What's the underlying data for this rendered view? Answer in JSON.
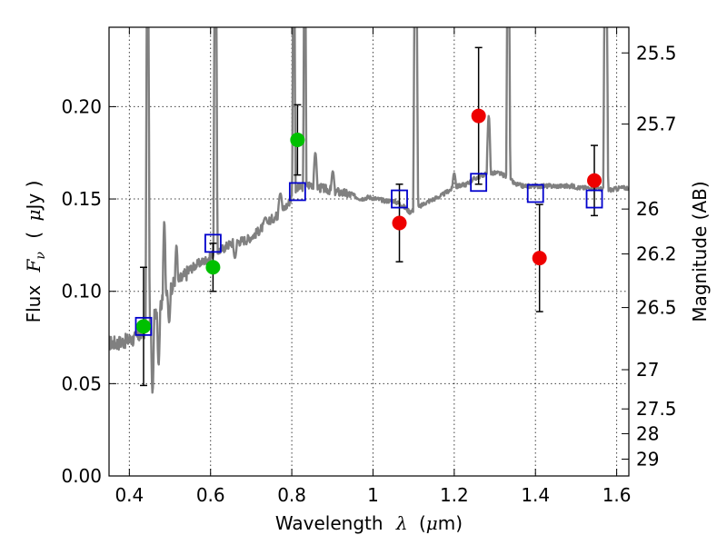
{
  "chart_data": {
    "type": "scatter",
    "title": "",
    "xlabel": {
      "prefix": "Wavelength",
      "symbol": "λ",
      "unit_open": "(",
      "unit_mu": "μ",
      "unit_rest": "m)"
    },
    "ylabel": {
      "prefix": "Flux",
      "symbol_main": "F",
      "symbol_sub": "ν",
      "unit_open": "(",
      "unit_mu": "μ",
      "unit_rest": "Jy )"
    },
    "y2label": "Magnitude (AB)",
    "xlim": [
      0.35,
      1.63
    ],
    "ylim": [
      0.0,
      0.243
    ],
    "grid": true,
    "x_ticks": [
      {
        "value": 0.4,
        "label": "0.4"
      },
      {
        "value": 0.6,
        "label": "0.6"
      },
      {
        "value": 0.8,
        "label": "0.8"
      },
      {
        "value": 1.0,
        "label": "1"
      },
      {
        "value": 1.2,
        "label": "1.2"
      },
      {
        "value": 1.4,
        "label": "1.4"
      },
      {
        "value": 1.6,
        "label": "1.6"
      }
    ],
    "y_ticks": [
      {
        "value": 0.0,
        "label": "0.00"
      },
      {
        "value": 0.05,
        "label": "0.05"
      },
      {
        "value": 0.1,
        "label": "0.10"
      },
      {
        "value": 0.15,
        "label": "0.15"
      },
      {
        "value": 0.2,
        "label": "0.20"
      }
    ],
    "y2_ticks": [
      {
        "value": 25.5,
        "label": "25.5"
      },
      {
        "value": 25.7,
        "label": "25.7"
      },
      {
        "value": 26.0,
        "label": "26"
      },
      {
        "value": 26.2,
        "label": "26.2"
      },
      {
        "value": 26.5,
        "label": "26.5"
      },
      {
        "value": 27.0,
        "label": "27"
      },
      {
        "value": 27.5,
        "label": "27.5"
      },
      {
        "value": 28.0,
        "label": "28"
      },
      {
        "value": 29.0,
        "label": "29"
      }
    ],
    "observed_green": {
      "color": "#00c000",
      "points": [
        {
          "x": 0.435,
          "y": 0.081,
          "err": 0.032
        },
        {
          "x": 0.606,
          "y": 0.113,
          "err": 0.013
        },
        {
          "x": 0.814,
          "y": 0.182,
          "err": 0.019
        }
      ]
    },
    "observed_red": {
      "color": "#ee0000",
      "points": [
        {
          "x": 1.065,
          "y": 0.137,
          "err": 0.021
        },
        {
          "x": 1.26,
          "y": 0.195,
          "err": 0.037
        },
        {
          "x": 1.41,
          "y": 0.118,
          "err": 0.029
        },
        {
          "x": 1.545,
          "y": 0.16,
          "err": 0.019
        }
      ]
    },
    "model_squares": {
      "color": "#0000cc",
      "points": [
        {
          "x": 0.435,
          "y": 0.081
        },
        {
          "x": 0.606,
          "y": 0.126
        },
        {
          "x": 0.814,
          "y": 0.154
        },
        {
          "x": 1.065,
          "y": 0.15
        },
        {
          "x": 1.26,
          "y": 0.159
        },
        {
          "x": 1.4,
          "y": 0.153
        },
        {
          "x": 1.545,
          "y": 0.15
        }
      ]
    },
    "model_spectrum": {
      "color": "#808080",
      "continuum": [
        [
          0.35,
          0.072
        ],
        [
          0.37,
          0.072
        ],
        [
          0.39,
          0.073
        ],
        [
          0.41,
          0.074
        ],
        [
          0.43,
          0.077
        ],
        [
          0.45,
          0.081
        ],
        [
          0.47,
          0.09
        ],
        [
          0.49,
          0.098
        ],
        [
          0.51,
          0.104
        ],
        [
          0.53,
          0.107
        ],
        [
          0.55,
          0.112
        ],
        [
          0.57,
          0.115
        ],
        [
          0.59,
          0.117
        ],
        [
          0.61,
          0.121
        ],
        [
          0.63,
          0.123
        ],
        [
          0.65,
          0.126
        ],
        [
          0.67,
          0.127
        ],
        [
          0.69,
          0.128
        ],
        [
          0.71,
          0.131
        ],
        [
          0.73,
          0.135
        ],
        [
          0.75,
          0.139
        ],
        [
          0.77,
          0.142
        ],
        [
          0.79,
          0.147
        ],
        [
          0.81,
          0.155
        ],
        [
          0.83,
          0.157
        ],
        [
          0.85,
          0.158
        ],
        [
          0.87,
          0.156
        ],
        [
          0.89,
          0.155
        ],
        [
          0.91,
          0.154
        ],
        [
          0.93,
          0.153
        ],
        [
          0.95,
          0.152
        ],
        [
          0.97,
          0.15
        ],
        [
          0.99,
          0.151
        ],
        [
          1.01,
          0.15
        ],
        [
          1.03,
          0.149
        ],
        [
          1.05,
          0.149
        ],
        [
          1.07,
          0.147
        ],
        [
          1.09,
          0.143
        ],
        [
          1.11,
          0.145
        ],
        [
          1.13,
          0.148
        ],
        [
          1.15,
          0.15
        ],
        [
          1.17,
          0.152
        ],
        [
          1.19,
          0.155
        ],
        [
          1.21,
          0.157
        ],
        [
          1.23,
          0.158
        ],
        [
          1.25,
          0.161
        ],
        [
          1.27,
          0.163
        ],
        [
          1.29,
          0.164
        ],
        [
          1.31,
          0.164
        ],
        [
          1.33,
          0.162
        ],
        [
          1.35,
          0.158
        ],
        [
          1.37,
          0.157
        ],
        [
          1.39,
          0.157
        ],
        [
          1.41,
          0.157
        ],
        [
          1.43,
          0.157
        ],
        [
          1.45,
          0.157
        ],
        [
          1.47,
          0.157
        ],
        [
          1.49,
          0.157
        ],
        [
          1.51,
          0.156
        ],
        [
          1.53,
          0.156
        ],
        [
          1.55,
          0.156
        ],
        [
          1.57,
          0.155
        ],
        [
          1.59,
          0.155
        ],
        [
          1.61,
          0.156
        ],
        [
          1.63,
          0.156
        ]
      ],
      "features": [
        {
          "x": 0.445,
          "y": 0.3,
          "w": 0.005
        },
        {
          "x": 0.457,
          "y": 0.045,
          "w": 0.004
        },
        {
          "x": 0.472,
          "y": 0.06,
          "w": 0.004
        },
        {
          "x": 0.486,
          "y": 0.138,
          "w": 0.004
        },
        {
          "x": 0.498,
          "y": 0.083,
          "w": 0.004
        },
        {
          "x": 0.516,
          "y": 0.125,
          "w": 0.004
        },
        {
          "x": 0.612,
          "y": 0.3,
          "w": 0.005
        },
        {
          "x": 0.66,
          "y": 0.118,
          "w": 0.005
        },
        {
          "x": 0.735,
          "y": 0.14,
          "w": 0.006
        },
        {
          "x": 0.772,
          "y": 0.153,
          "w": 0.006
        },
        {
          "x": 0.805,
          "y": 0.3,
          "w": 0.004
        },
        {
          "x": 0.832,
          "y": 0.3,
          "w": 0.004
        },
        {
          "x": 0.858,
          "y": 0.175,
          "w": 0.005
        },
        {
          "x": 0.901,
          "y": 0.165,
          "w": 0.005
        },
        {
          "x": 1.105,
          "y": 0.3,
          "w": 0.006
        },
        {
          "x": 1.2,
          "y": 0.164,
          "w": 0.005
        },
        {
          "x": 1.285,
          "y": 0.195,
          "w": 0.005
        },
        {
          "x": 1.333,
          "y": 0.3,
          "w": 0.005
        },
        {
          "x": 1.573,
          "y": 0.3,
          "w": 0.006
        }
      ]
    }
  }
}
